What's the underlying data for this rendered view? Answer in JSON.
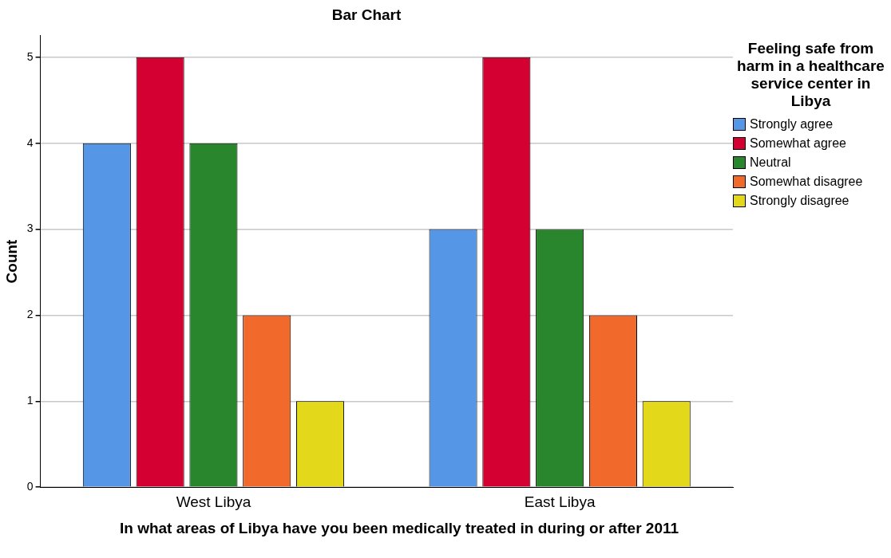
{
  "chart_data": {
    "type": "bar",
    "title": "Bar Chart",
    "xlabel": "In what areas of Libya have you been medically treated in during or after 2011",
    "ylabel": "Count",
    "legend_title": "Feeling safe from harm in a healthcare service center in Libya",
    "categories": [
      "West Libya",
      "East Libya"
    ],
    "series": [
      {
        "name": "Strongly agree",
        "color": "#5596e6",
        "values": [
          4,
          3
        ]
      },
      {
        "name": "Somewhat agree",
        "color": "#d50032",
        "values": [
          5,
          5
        ]
      },
      {
        "name": "Neutral",
        "color": "#2a862c",
        "values": [
          4,
          3
        ]
      },
      {
        "name": "Somewhat disagree",
        "color": "#f26a2b",
        "values": [
          2,
          2
        ]
      },
      {
        "name": "Strongly disagree",
        "color": "#e3d81a",
        "values": [
          1,
          1
        ]
      }
    ],
    "ylim": [
      0,
      5.25
    ],
    "yticks": [
      0,
      1,
      2,
      3,
      4,
      5
    ],
    "grid": "y",
    "legend": "top right"
  }
}
